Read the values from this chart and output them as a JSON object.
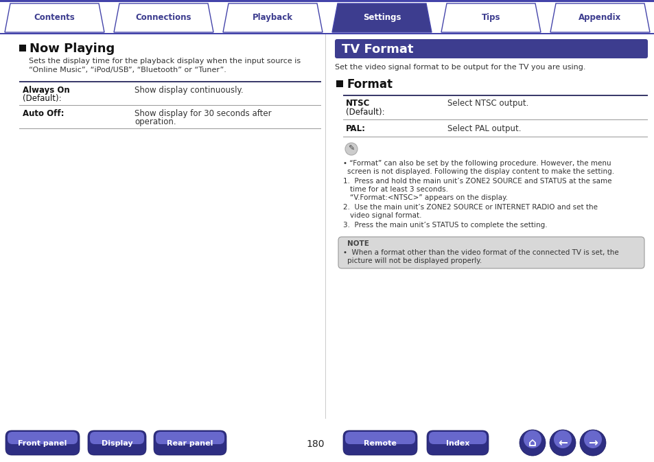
{
  "tab_labels": [
    "Contents",
    "Connections",
    "Playback",
    "Settings",
    "Tips",
    "Appendix"
  ],
  "active_tab": "Settings",
  "tab_color_active": "#3d3d8f",
  "tab_color_inactive": "#ffffff",
  "tab_border_color": "#4444aa",
  "tab_text_active": "#ffffff",
  "tab_text_inactive": "#3d3d8f",
  "top_line_color": "#4444aa",
  "left_section": {
    "heading": "Now Playing",
    "intro_line1": "Sets the display time for the playback display when the input source is",
    "intro_line2": "“Online Music”, “iPod/USB”, “Bluetooth” or “Tuner”.",
    "row1_label1": "Always On",
    "row1_label2": "(Default):",
    "row1_desc": "Show display continuously.",
    "row2_label": "Auto Off:",
    "row2_desc1": "Show display for 30 seconds after",
    "row2_desc2": "operation."
  },
  "right_section": {
    "banner_text": "TV Format",
    "banner_bg": "#3d3d8f",
    "banner_fg": "#ffffff",
    "intro": "Set the video signal format to be output for the TV you are using.",
    "heading": "Format",
    "ntsc_label1": "NTSC",
    "ntsc_label2": "(Default):",
    "ntsc_desc": "Select NTSC output.",
    "pal_label": "PAL:",
    "pal_desc": "Select PAL output.",
    "bullet_note": "“Format” can also be set by the following procedure. However, the menu",
    "bullet_note2": "screen is not displayed. Following the display content to make the setting.",
    "num1a": "Press and hold the main unit’s ZONE2 SOURCE and STATUS at the same",
    "num1b": "time for at least 3 seconds.",
    "num1c": "“V.Format:<NTSC>” appears on the display.",
    "num2a": "Use the main unit’s ZONE2 SOURCE or INTERNET RADIO and set the",
    "num2b": "video signal format.",
    "num3": "Press the main unit’s STATUS to complete the setting.",
    "caution1": "•  When a format other than the video format of the connected TV is set, the",
    "caution2": "picture will not be displayed properly."
  },
  "bottom_buttons": [
    "Front panel",
    "Display",
    "Rear panel",
    "Remote",
    "Index"
  ],
  "page_number": "180",
  "btn_dark": "#2e2e82",
  "btn_mid": "#4a4aaa",
  "btn_light": "#6868cc",
  "btn_text": "#ffffff",
  "bg": "#ffffff",
  "dark_text": "#111111",
  "mid_text": "#333333",
  "table_line_dark": "#3a3a6a",
  "table_line_light": "#999999",
  "note_bg": "#d8d8d8",
  "note_border": "#999999"
}
